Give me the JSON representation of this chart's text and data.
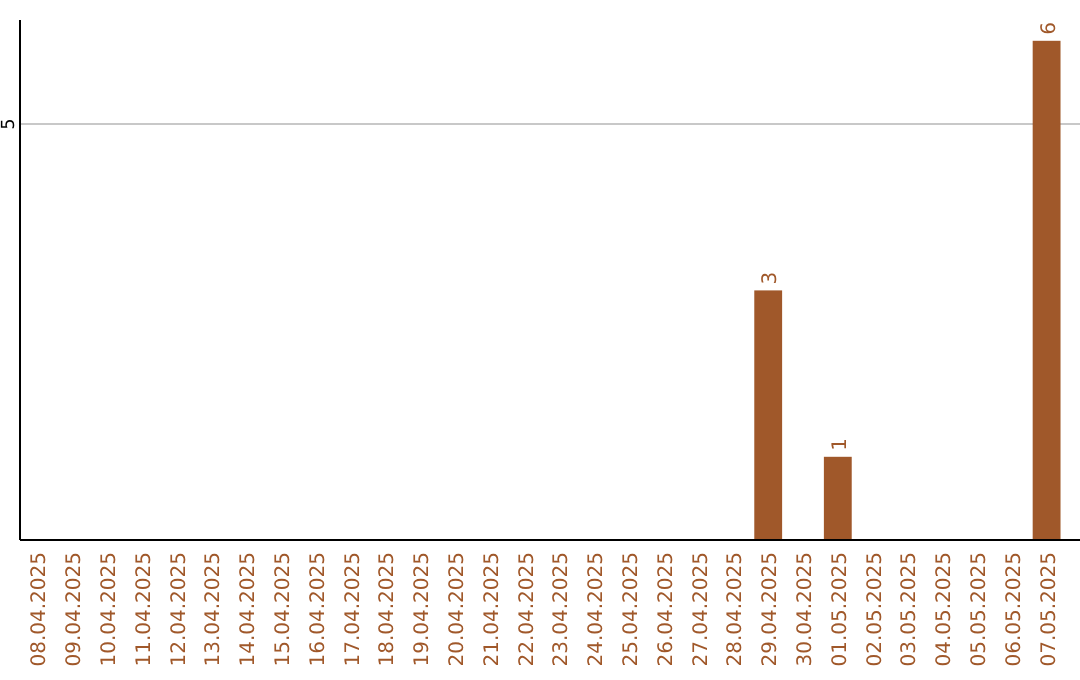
{
  "chart_data": {
    "type": "bar",
    "categories": [
      "08.04.2025",
      "09.04.2025",
      "10.04.2025",
      "11.04.2025",
      "12.04.2025",
      "13.04.2025",
      "14.04.2025",
      "15.04.2025",
      "16.04.2025",
      "17.04.2025",
      "18.04.2025",
      "19.04.2025",
      "20.04.2025",
      "21.04.2025",
      "22.04.2025",
      "23.04.2025",
      "24.04.2025",
      "25.04.2025",
      "26.04.2025",
      "27.04.2025",
      "28.04.2025",
      "29.04.2025",
      "30.04.2025",
      "01.05.2025",
      "02.05.2025",
      "03.05.2025",
      "04.05.2025",
      "05.05.2025",
      "06.05.2025",
      "07.05.2025"
    ],
    "values": [
      null,
      null,
      null,
      null,
      null,
      null,
      null,
      null,
      null,
      null,
      null,
      null,
      null,
      null,
      null,
      null,
      null,
      null,
      null,
      null,
      null,
      3,
      null,
      1,
      null,
      null,
      null,
      null,
      null,
      6
    ],
    "data_labels": true,
    "color": "#a0582a",
    "ylim": [
      0,
      6.25
    ],
    "yticks": [
      5
    ],
    "grid": "y"
  }
}
